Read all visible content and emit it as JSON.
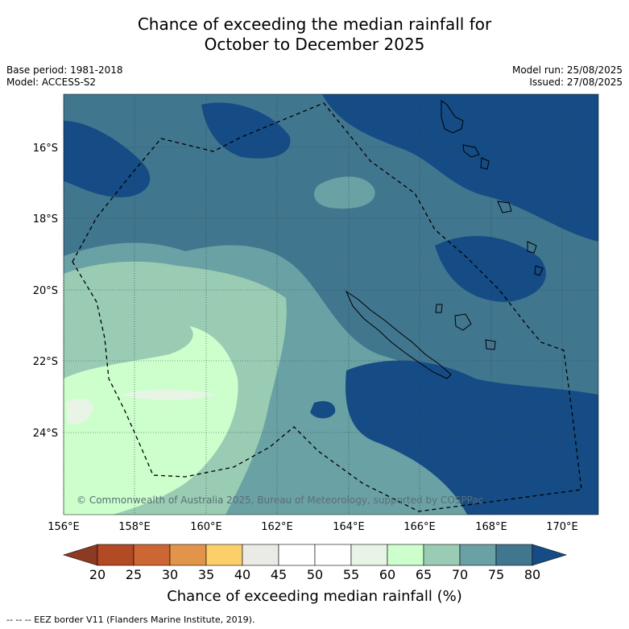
{
  "title_line1": "Chance of exceeding the median rainfall for",
  "title_line2": "October to December 2025",
  "base_period": "Base period: 1981-2018",
  "model": "Model: ACCESS-S2",
  "model_run": "Model run: 25/08/2025",
  "issued": "Issued: 27/08/2025",
  "credit": "© Commonwealth of Australia 2025, Bureau of Meteorology, supported by COSPPac",
  "lat_labels": [
    "16°S",
    "18°S",
    "20°S",
    "22°S",
    "24°S"
  ],
  "lon_labels": [
    "156°E",
    "158°E",
    "160°E",
    "162°E",
    "164°E",
    "166°E",
    "168°E",
    "170°E"
  ],
  "colorbar": {
    "label": "Chance of exceeding median rainfall (%)",
    "ticks": [
      "20",
      "25",
      "30",
      "35",
      "40",
      "45",
      "50",
      "55",
      "60",
      "65",
      "70",
      "75",
      "80"
    ],
    "colors": [
      "#b24a24",
      "#cc6633",
      "#e2954a",
      "#fbd06b",
      "#ebebe6",
      "#ffffff",
      "#ffffff",
      "#e8f5e6",
      "#ccffcc",
      "#99ccb3",
      "#6aa1a5",
      "#41768f"
    ],
    "under_color": "#8c3a22",
    "over_color": "#154c85"
  },
  "footnote": "--  --  -- EEZ border V11 (Flanders Marine Institute, 2019)."
}
